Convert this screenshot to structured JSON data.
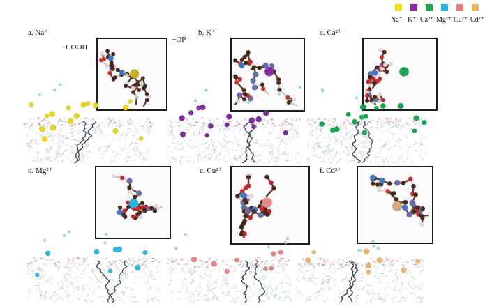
{
  "legend": {
    "items": [
      {
        "label": "Na⁺",
        "color": "#f2df1a"
      },
      {
        "label": "K⁺",
        "color": "#8b2aa6"
      },
      {
        "label": "Ca²⁺",
        "color": "#17a551"
      },
      {
        "label": "Mg²⁺",
        "color": "#24b6e0"
      },
      {
        "label": "Cu²⁺",
        "color": "#ec7b78"
      },
      {
        "label": "Cd²⁺",
        "color": "#f2b25e"
      }
    ]
  },
  "panels": [
    {
      "label": "a. Na⁺",
      "ion_color": "#c8b11c"
    },
    {
      "label": "b. K⁺",
      "ion_color": "#8b2aa6"
    },
    {
      "label": "c. Ca²⁺",
      "ion_color": "#17a551"
    },
    {
      "label": "d. Mg²⁺",
      "ion_color": "#24b6e0"
    },
    {
      "label": "e. Cu²⁺",
      "ion_color": "#e58a84"
    },
    {
      "label": "f. Cd²⁺",
      "ion_color": "#d4ab74"
    }
  ],
  "groups": {
    "cooh": "−COOH",
    "op": "−OP"
  }
}
